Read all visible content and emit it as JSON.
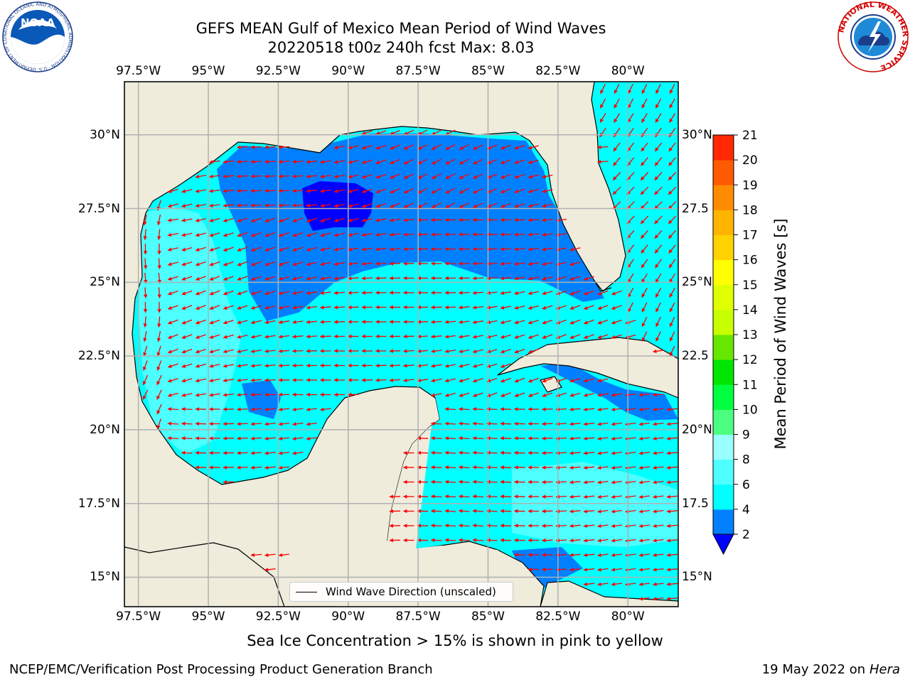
{
  "title": {
    "line1": "GEFS MEAN Gulf of Mexico Mean Period of Wind Waves",
    "line2": "20220518 t00z 240h fcst   Max: 8.03"
  },
  "map": {
    "lon_ticks": [
      "97.5°W",
      "95°W",
      "92.5°W",
      "90°W",
      "87.5°W",
      "85°W",
      "82.5°W",
      "80°W"
    ],
    "lat_ticks_left": [
      "30°N",
      "27.5°N",
      "25°N",
      "22.5°N",
      "20°N",
      "17.5°N",
      "15°N"
    ],
    "lat_ticks_right": [
      "30°N",
      "27.5",
      "25°N",
      "22.5",
      "20°N",
      "17.5",
      "15°N"
    ],
    "extent": {
      "lon": [
        -98,
        -78.2
      ],
      "lat": [
        14,
        31.8
      ]
    },
    "gridlines": true,
    "land_color": "#efecdc",
    "arrow_color": "#ff0000",
    "legend_label": "Wind Wave Direction (unscaled)"
  },
  "colorbar": {
    "label": "Mean Period of Wind Waves [s]",
    "tick_labels": [
      "2",
      "4",
      "6",
      "8",
      "9",
      "10",
      "11",
      "12",
      "13",
      "14",
      "15",
      "16",
      "17",
      "18",
      "19",
      "20",
      "21"
    ],
    "bins": [
      {
        "from": 2,
        "to": 4,
        "color": "#0080ff"
      },
      {
        "from": 4,
        "to": 6,
        "color": "#00ffff"
      },
      {
        "from": 6,
        "to": 8,
        "color": "#4dffff"
      },
      {
        "from": 8,
        "to": 9,
        "color": "#99ffff"
      },
      {
        "from": 9,
        "to": 10,
        "color": "#4dff80"
      },
      {
        "from": 10,
        "to": 11,
        "color": "#00ff3f"
      },
      {
        "from": 11,
        "to": 12,
        "color": "#00e600"
      },
      {
        "from": 12,
        "to": 13,
        "color": "#66e600"
      },
      {
        "from": 13,
        "to": 14,
        "color": "#c8ff00"
      },
      {
        "from": 14,
        "to": 15,
        "color": "#e0ff00"
      },
      {
        "from": 15,
        "to": 16,
        "color": "#ffff00"
      },
      {
        "from": 16,
        "to": 17,
        "color": "#ffd200"
      },
      {
        "from": 17,
        "to": 18,
        "color": "#ffb400"
      },
      {
        "from": 18,
        "to": 19,
        "color": "#ff8c00"
      },
      {
        "from": 19,
        "to": 20,
        "color": "#ff5a00"
      },
      {
        "from": 20,
        "to": 21,
        "color": "#ff2800"
      }
    ],
    "under_color": "#0000ff"
  },
  "footer": {
    "ice_note": "Sea Ice Concentration > 15% is shown in pink to yellow",
    "credit": "NCEP/EMC/Verification Post Processing Product Generation Branch",
    "date": "19 May 2022 on",
    "host": "Hera"
  },
  "logos": {
    "noaa_text": "NOAA",
    "noaa_ring": "NATIONAL OCEANIC AND ATMOSPHERIC ADMINISTRATION · U.S. DEPARTMENT OF COMMERCE",
    "nws_ring": "NATIONAL WEATHER SERVICE"
  }
}
